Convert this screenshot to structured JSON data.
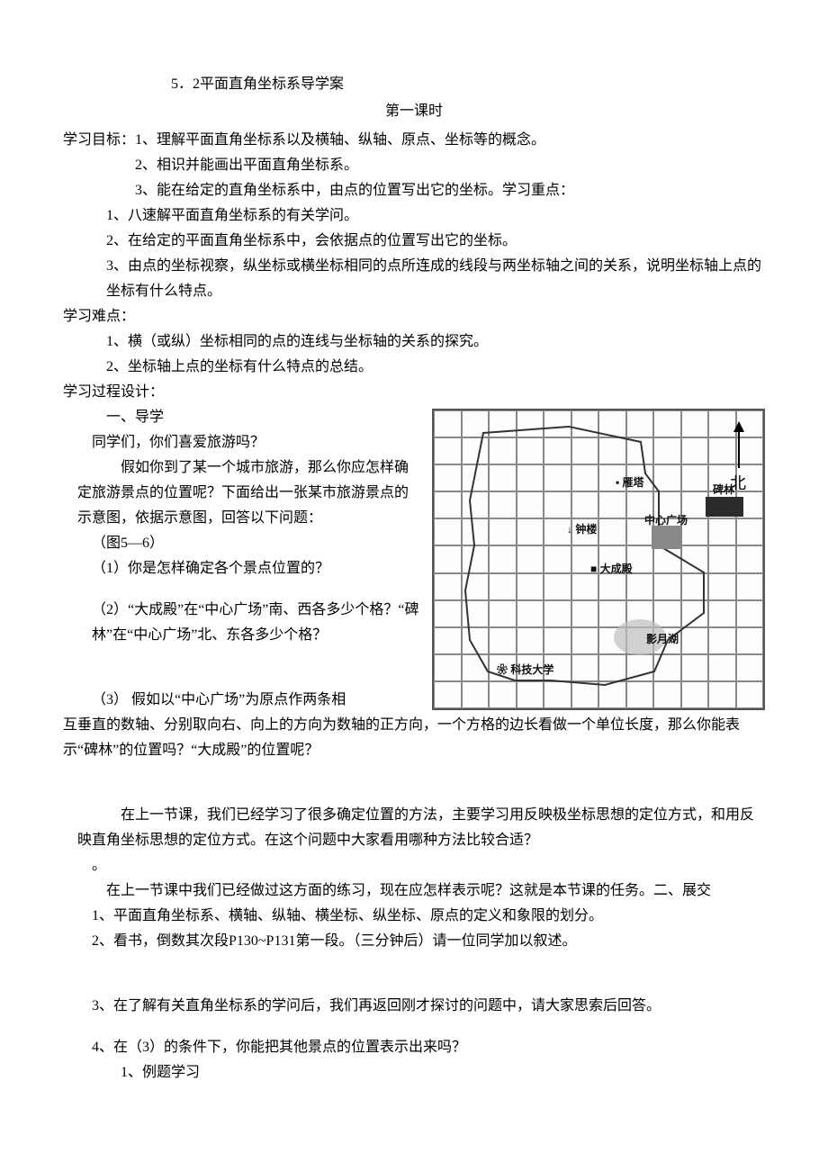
{
  "titles": {
    "main": "5．2平面直角坐标系导学案",
    "sub": "第一课时"
  },
  "goals": {
    "head": "学习目标：1、理解平面直角坐标系以及横轴、纵轴、原点、坐标等的概念。",
    "g2": "2、相识并能画出平面直角坐标系。",
    "g3": "3、能在给定的直角坐标系中，由点的位置写出它的坐标。学习重点："
  },
  "keypoints": {
    "k1": "1、八速解平面直角坐标系的有关学问。",
    "k2": "2、在给定的平面直角坐标系中，会依据点的位置写出它的坐标。",
    "k3": "3、由点的坐标视察，纵坐标或横坐标相同的点所连成的线段与两坐标轴之间的关系，说明坐标轴上点的坐标有什么特点。"
  },
  "difficulty": {
    "head": "学习难点：",
    "d1": "1、横（或纵）坐标相同的点的连线与坐标轴的关系的探究。",
    "d2": "2、坐标轴上点的坐标有什么特点的总结。"
  },
  "process": {
    "head": "学习过程设计：",
    "sec1": "一、导学",
    "q_intro": "同学们，你们喜爱旅游吗？",
    "p1": "假如你到了某一个城市旅游，那么你应怎样确定旅游景点的位置呢？下面给出一张某市旅游景点的示意图，依据示意图，回答以下问题：",
    "fig_ref": "（图5—6）",
    "q1": "（1）你是怎样确定各个景点位置的？",
    "q2": "（2）“大成殿”在“中心广场”南、西各多少个格？“碑林”在“中心广场”北、东各多少个格？",
    "q3a": "（3）   假如以“中心广场”为原点作两条相",
    "q3b": "互垂直的数轴、分别取向右、向上的方向为数轴的正方向，一个方格的边长看做一个单位长度，那么你能表示“碑林”的位置吗？“大成殿”的位置呢？"
  },
  "discuss": {
    "p1": "在上一节课，我们已经学习了很多确定位置的方法，主要学习用反映极坐标思想的定位方式，和用反映直角坐标思想的定位方式。在这个问题中大家看用哪种方法比较合适？",
    "dot": "。",
    "p2": "在上一节课中我们已经做过这方面的练习，现在应怎样表示呢？这就是本节课的任务。二、展交",
    "l1": "1、平面直角坐标系、横轴、纵轴、横坐标、纵坐标、原点的定义和象限的划分。",
    "l2": "2、看书，倒数其次段P130~P131第一段。（三分钟后）请一位同学加以叙述。",
    "l3": "3、在了解有关直角坐标系的学问后，我们再返回刚才探讨的问题中，请大家思索后回答。",
    "l4": "4、在（3）的条件下，你能把其他景点的位置表示出来吗？",
    "l5": "1、例题学习"
  },
  "map": {
    "grid": {
      "cols": 12,
      "rows": 11,
      "cell": 30
    },
    "north_label": "北",
    "labels": {
      "yanta": "雁塔",
      "beilin": "碑林",
      "zhonglou": "钟楼",
      "square": "中心广场",
      "dachengdian": "大成殿",
      "yingyuehu": "影月湖",
      "kejidaxue": "科技大学"
    },
    "colors": {
      "grid_line": "#888888",
      "border": "#555555",
      "bg": "#efefef",
      "cell_bg": "#fdfdfd",
      "dark": "#2b2b2b",
      "grey": "#888888",
      "light": "#bdbdbd",
      "text": "#111111"
    }
  }
}
